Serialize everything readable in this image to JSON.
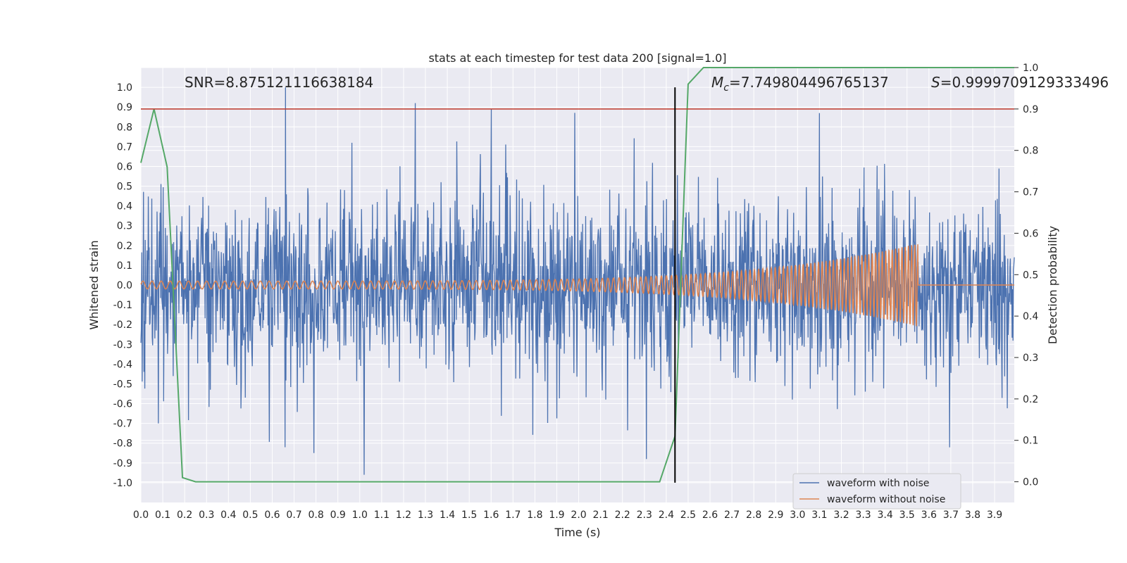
{
  "chart_data": {
    "type": "line",
    "title": "stats at each timestep for test data 200 [signal=1.0]",
    "xlabel": "Time (s)",
    "ylabel": "Whitened strain",
    "ylabel_right": "Detection probability",
    "xlim": [
      0.0,
      3.99
    ],
    "ylim": [
      -1.1,
      1.1
    ],
    "ylim_right": [
      -0.05,
      1.0
    ],
    "x_ticks": [
      "0.0",
      "0.1",
      "0.2",
      "0.3",
      "0.4",
      "0.5",
      "0.6",
      "0.7",
      "0.8",
      "0.9",
      "1.0",
      "1.1",
      "1.2",
      "1.3",
      "1.4",
      "1.5",
      "1.6",
      "1.7",
      "1.8",
      "1.9",
      "2.0",
      "2.1",
      "2.2",
      "2.3",
      "2.4",
      "2.5",
      "2.6",
      "2.7",
      "2.8",
      "2.9",
      "3.0",
      "3.1",
      "3.2",
      "3.3",
      "3.4",
      "3.5",
      "3.6",
      "3.7",
      "3.8",
      "3.9"
    ],
    "y_ticks": [
      "1.0",
      "0.9",
      "0.8",
      "0.7",
      "0.6",
      "0.5",
      "0.4",
      "0.3",
      "0.2",
      "0.1",
      "0.0",
      "-0.1",
      "-0.2",
      "-0.3",
      "-0.4",
      "-0.5",
      "-0.6",
      "-0.7",
      "-0.8",
      "-0.9",
      "-1.0"
    ],
    "y_ticks_right": [
      "1.0",
      "0.9",
      "0.8",
      "0.7",
      "0.6",
      "0.5",
      "0.4",
      "0.3",
      "0.2",
      "0.1",
      "0.0"
    ],
    "grid": true,
    "legend_position": "bottom-right",
    "annotations": {
      "snr": "SNR=8.875121116638184",
      "mc_symbol": "M",
      "mc_sub": "c",
      "mc_value": "=7.749804496765137",
      "s_symbol": "S",
      "s_value": "=0.9999709129333496"
    },
    "threshold": {
      "axis": "right",
      "value": 0.9,
      "color": "#c0392b"
    },
    "marker_line": {
      "x": 2.44,
      "y_from": -1.0,
      "y_to": 1.0,
      "color": "#000000"
    },
    "series": [
      {
        "name": "waveform with noise",
        "color": "#4c72b0",
        "axis": "left",
        "kind": "noise",
        "amplitude_std": 0.22,
        "max_abs": 1.0,
        "x_range": [
          0.0,
          3.99
        ],
        "samples": 2000,
        "notable_peaks": [
          [
            0.66,
            1.0
          ],
          [
            1.02,
            -0.96
          ],
          [
            1.6,
            0.89
          ],
          [
            3.1,
            0.87
          ],
          [
            2.31,
            -0.88
          ],
          [
            0.79,
            -0.85
          ]
        ]
      },
      {
        "name": "waveform without noise",
        "color": "#dd8452",
        "axis": "left",
        "kind": "chirp",
        "x_range": [
          0.0,
          3.55
        ],
        "amplitude_start": 0.02,
        "amplitude_end": 0.21,
        "freq_start_hz": 24,
        "freq_end_hz": 70
      },
      {
        "name": "detection probability",
        "color": "#55a868",
        "axis": "right",
        "kind": "line",
        "x": [
          0.0,
          0.06,
          0.12,
          0.19,
          0.25,
          0.5,
          0.75,
          1.0,
          2.0,
          2.3,
          2.37,
          2.44,
          2.5,
          2.57,
          3.0,
          3.5,
          3.99
        ],
        "y": [
          0.77,
          0.9,
          0.76,
          0.01,
          0.0,
          0.0,
          0.0,
          0.0,
          0.0,
          0.0,
          0.0,
          0.11,
          0.96,
          1.0,
          1.0,
          1.0,
          1.0
        ]
      }
    ]
  }
}
